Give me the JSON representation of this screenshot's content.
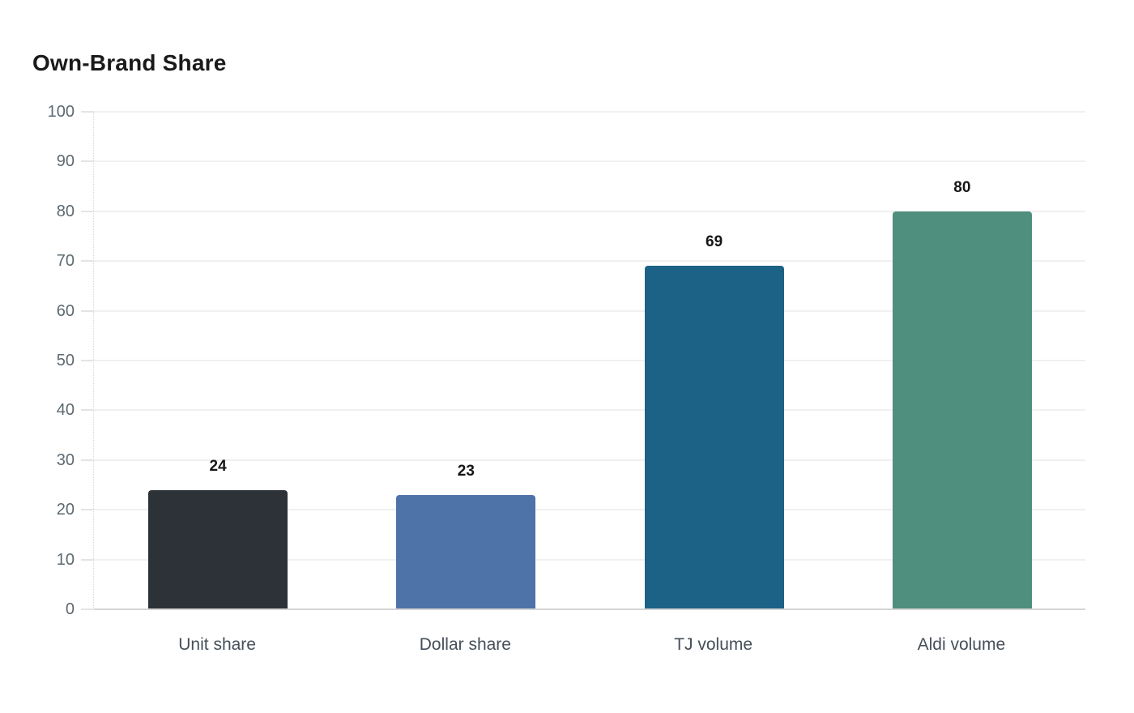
{
  "title": "Own-Brand Share",
  "chart_data": {
    "type": "bar",
    "title": "Own-Brand Share",
    "categories": [
      "Unit share",
      "Dollar share",
      "TJ volume",
      "Aldi volume"
    ],
    "values": [
      24,
      23,
      69,
      80
    ],
    "value_labels": [
      "24",
      "23",
      "69",
      "80"
    ],
    "xlabel": "",
    "ylabel": "",
    "ylim": [
      0,
      100
    ],
    "ytick_interval": 10,
    "ytick_labels": [
      "0",
      "10",
      "20",
      "30",
      "40",
      "50",
      "60",
      "70",
      "80",
      "90",
      "100"
    ],
    "grid": true,
    "legend": false,
    "bar_colors": [
      "#2c3237",
      "#4e73a8",
      "#1c6286",
      "#4f8f7e"
    ],
    "grid_color": "#f0f0f0",
    "baseline_color": "#d5d5d5",
    "axis_dotted_color": "#d8d8d8",
    "ytick_label_color": "#5d6970",
    "category_label_color": "#454f59",
    "value_label_color": "#161616",
    "title_color": "#1a1a1a"
  }
}
